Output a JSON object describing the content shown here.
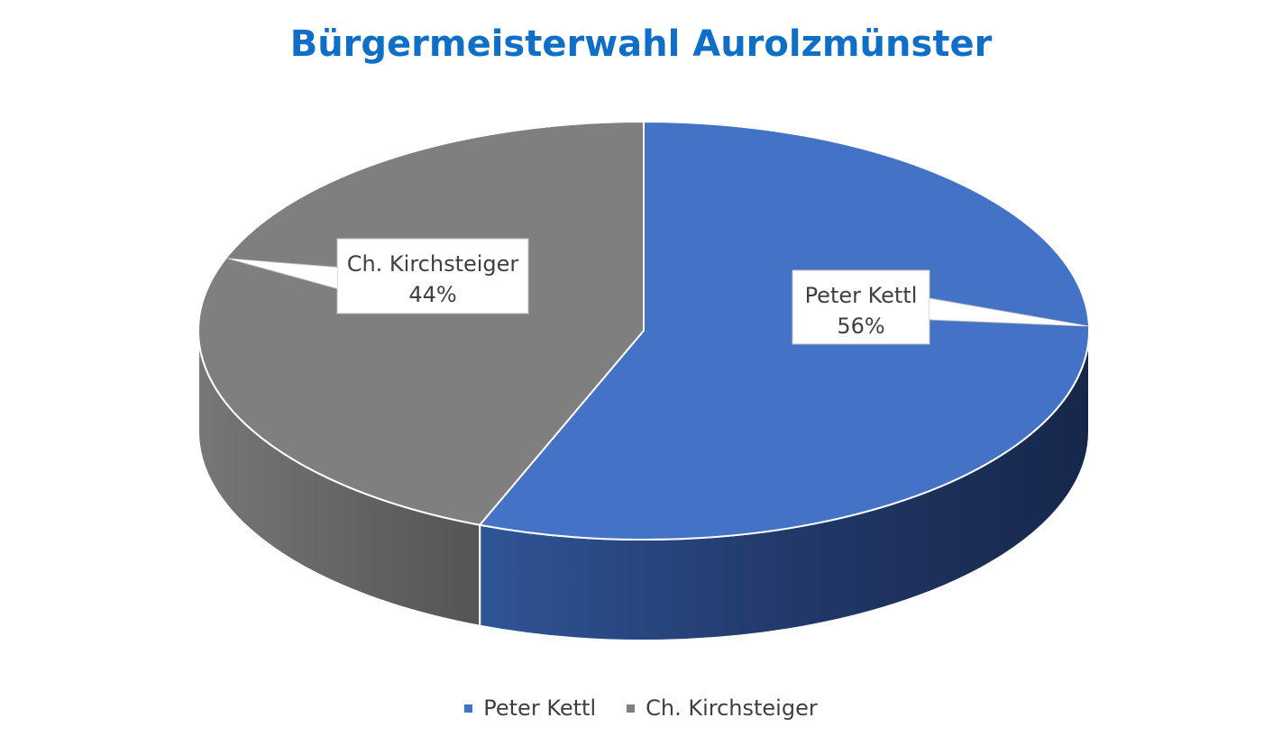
{
  "chart_data": {
    "type": "pie",
    "title": "Bürgermeisterwahl Aurolzmünster",
    "style": "3d",
    "slices": [
      {
        "name": "Peter Kettl",
        "value": 56,
        "label": "56%",
        "color": "#4472c4",
        "side_color": "#1c2d52"
      },
      {
        "name": "Ch. Kirchsteiger",
        "value": 44,
        "label": "44%",
        "color": "#7f7f7f",
        "side_color": "#555555"
      }
    ],
    "legend": {
      "position": "bottom",
      "items": [
        "Peter Kettl",
        "Ch. Kirchsteiger"
      ]
    }
  }
}
